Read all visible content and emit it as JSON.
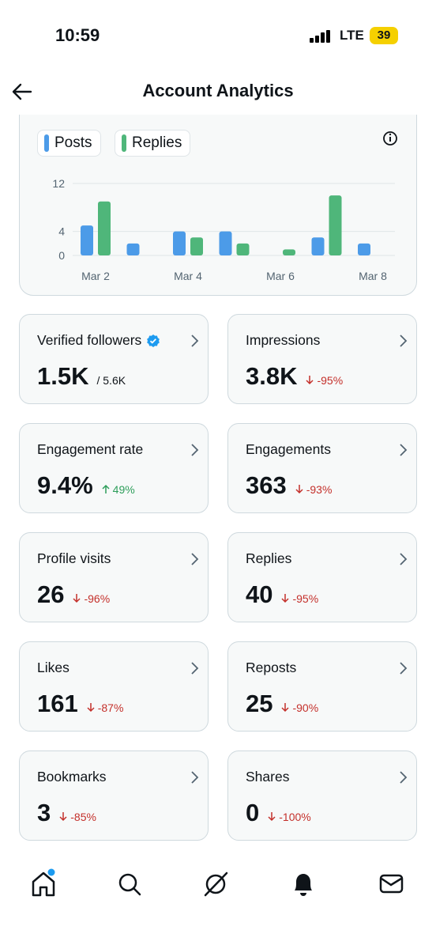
{
  "status_bar": {
    "time": "10:59",
    "network": "LTE",
    "battery": "39"
  },
  "header": {
    "title": "Account Analytics"
  },
  "chart_data": {
    "type": "bar",
    "categories": [
      "Mar 2",
      null,
      "Mar 4",
      null,
      "Mar 6",
      null,
      "Mar 8"
    ],
    "series": [
      {
        "name": "Posts",
        "color": "#4c9be8",
        "values": [
          5,
          2,
          4,
          4,
          0,
          3,
          2
        ]
      },
      {
        "name": "Replies",
        "color": "#4fb67a",
        "values": [
          9,
          0,
          3,
          2,
          1,
          10,
          0
        ]
      }
    ],
    "ylim": [
      0,
      12
    ],
    "yticks": [
      0,
      4,
      12
    ],
    "grid": true
  },
  "metrics": [
    {
      "label": "Verified followers",
      "value": "1.5K",
      "secondary": "/ 5.6K",
      "verified": true
    },
    {
      "label": "Impressions",
      "value": "3.8K",
      "change": "-95%",
      "trend": "down"
    },
    {
      "label": "Engagement rate",
      "value": "9.4%",
      "change": "49%",
      "trend": "up"
    },
    {
      "label": "Engagements",
      "value": "363",
      "change": "-93%",
      "trend": "down"
    },
    {
      "label": "Profile visits",
      "value": "26",
      "change": "-96%",
      "trend": "down"
    },
    {
      "label": "Replies",
      "value": "40",
      "change": "-95%",
      "trend": "down"
    },
    {
      "label": "Likes",
      "value": "161",
      "change": "-87%",
      "trend": "down"
    },
    {
      "label": "Reposts",
      "value": "25",
      "change": "-90%",
      "trend": "down"
    },
    {
      "label": "Bookmarks",
      "value": "3",
      "change": "-85%",
      "trend": "down"
    },
    {
      "label": "Shares",
      "value": "0",
      "change": "-100%",
      "trend": "down"
    }
  ]
}
